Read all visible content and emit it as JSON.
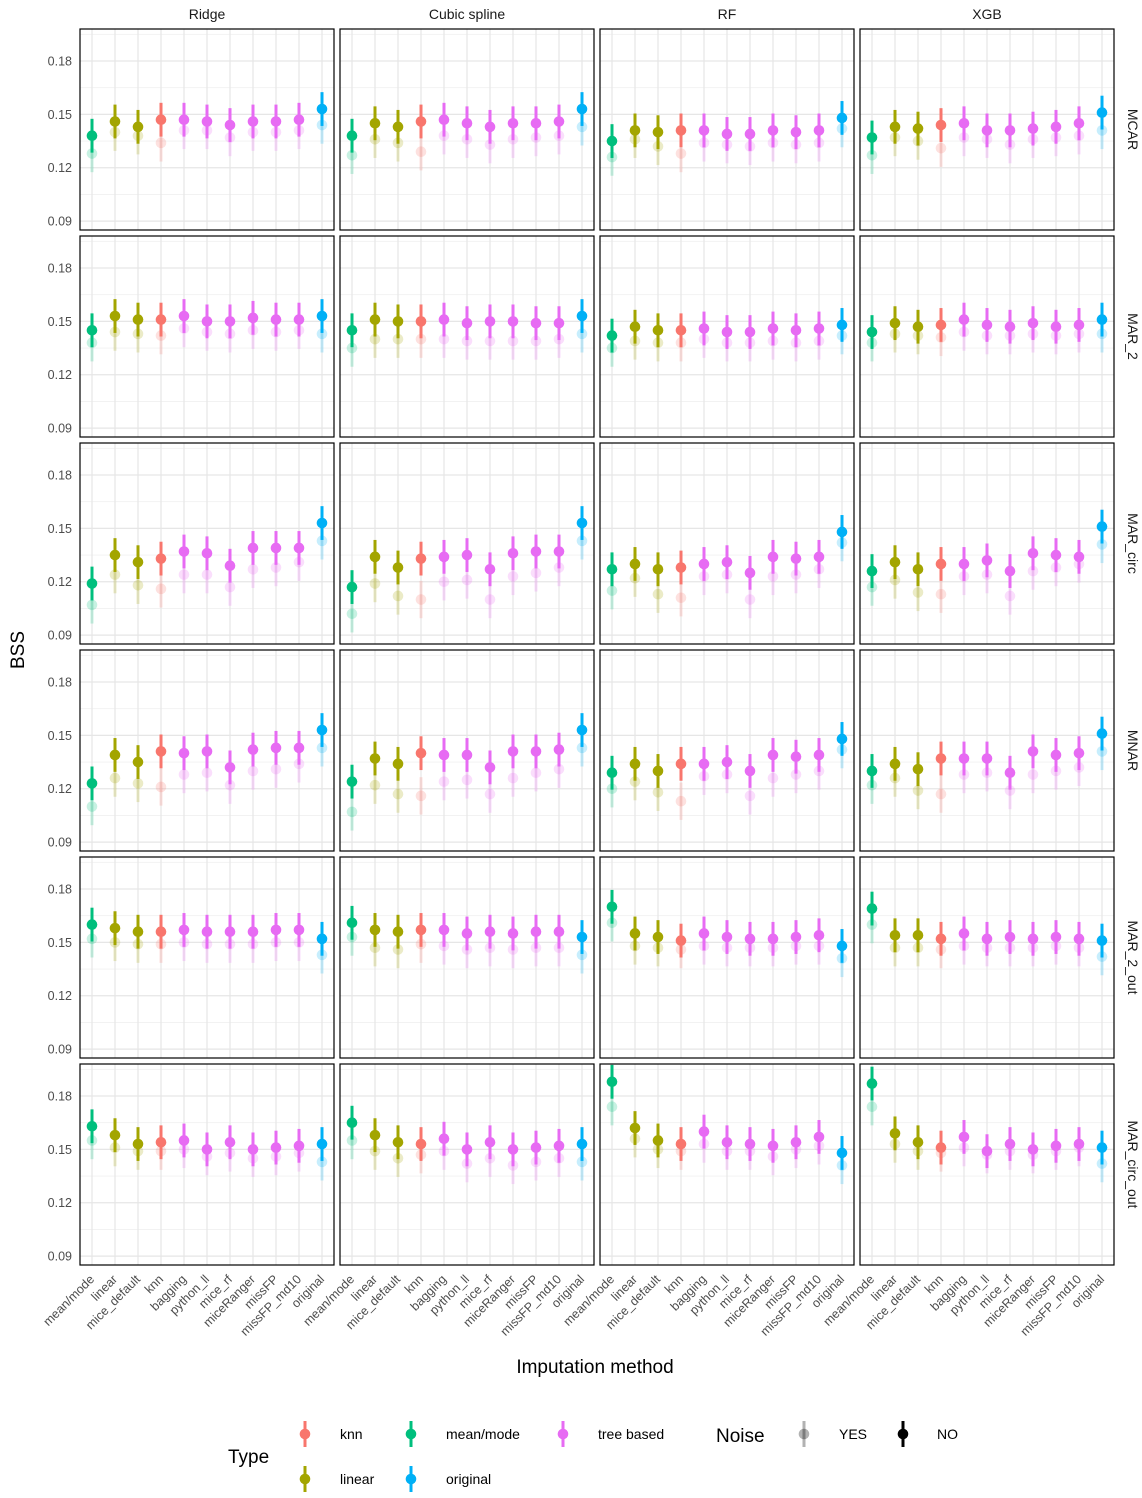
{
  "chart_data": {
    "type": "scatter",
    "ylabel": "BSS",
    "xlabel": "Imputation method",
    "ylim": [
      0.085,
      0.198
    ],
    "yticks": [
      0.09,
      0.12,
      0.15,
      0.18
    ],
    "grid": true,
    "legend_position": "bottom",
    "models": [
      "Ridge",
      "Cubic spline",
      "RF",
      "XGB"
    ],
    "mechanisms": [
      "MCAR",
      "MAR_2",
      "MAR_circ",
      "MNAR",
      "MAR_2_out",
      "MAR_circ_out"
    ],
    "methods": [
      "mean/mode",
      "linear",
      "mice_default",
      "knn",
      "bagging",
      "python_ll",
      "mice_rf",
      "miceRanger",
      "missFP",
      "missFP_md10",
      "original"
    ],
    "method_types": [
      "mean/mode",
      "linear",
      "linear",
      "knn",
      "tree based",
      "tree based",
      "tree based",
      "tree based",
      "tree based",
      "tree based",
      "original"
    ],
    "type_colors": {
      "knn": "#F8766D",
      "linear": "#A3A500",
      "mean/mode": "#00BF7D",
      "original": "#00B0F6",
      "tree based": "#E76BF3"
    },
    "legend": {
      "type_title": "Type",
      "type_entries": [
        "knn",
        "linear",
        "mean/mode",
        "original",
        "tree based"
      ],
      "noise_title": "Noise",
      "noise_entries": [
        "YES",
        "NO"
      ]
    },
    "series": [
      {
        "name": "NO",
        "values": {
          "MCAR": {
            "Ridge": [
              0.138,
              0.146,
              0.143,
              0.147,
              0.147,
              0.146,
              0.144,
              0.146,
              0.146,
              0.147,
              0.153
            ],
            "Cubic spline": [
              0.138,
              0.145,
              0.143,
              0.146,
              0.147,
              0.145,
              0.143,
              0.145,
              0.145,
              0.146,
              0.153
            ],
            "RF": [
              0.135,
              0.141,
              0.14,
              0.141,
              0.141,
              0.139,
              0.139,
              0.141,
              0.14,
              0.141,
              0.148
            ],
            "XGB": [
              0.137,
              0.143,
              0.142,
              0.144,
              0.145,
              0.141,
              0.141,
              0.142,
              0.143,
              0.145,
              0.151
            ]
          },
          "MAR_2": {
            "Ridge": [
              0.145,
              0.153,
              0.151,
              0.151,
              0.153,
              0.15,
              0.15,
              0.152,
              0.151,
              0.151,
              0.153
            ],
            "Cubic spline": [
              0.145,
              0.151,
              0.15,
              0.15,
              0.151,
              0.149,
              0.15,
              0.15,
              0.149,
              0.149,
              0.153
            ],
            "RF": [
              0.142,
              0.147,
              0.145,
              0.145,
              0.146,
              0.144,
              0.144,
              0.146,
              0.145,
              0.146,
              0.148
            ],
            "XGB": [
              0.144,
              0.149,
              0.147,
              0.148,
              0.151,
              0.148,
              0.147,
              0.149,
              0.147,
              0.148,
              0.151
            ]
          },
          "MAR_circ": {
            "Ridge": [
              0.119,
              0.135,
              0.131,
              0.133,
              0.137,
              0.136,
              0.129,
              0.139,
              0.139,
              0.139,
              0.153
            ],
            "Cubic spline": [
              0.117,
              0.134,
              0.128,
              0.133,
              0.134,
              0.135,
              0.127,
              0.136,
              0.137,
              0.137,
              0.153
            ],
            "RF": [
              0.127,
              0.13,
              0.127,
              0.128,
              0.13,
              0.131,
              0.125,
              0.134,
              0.133,
              0.134,
              0.148
            ],
            "XGB": [
              0.126,
              0.131,
              0.127,
              0.13,
              0.13,
              0.132,
              0.126,
              0.136,
              0.135,
              0.134,
              0.151
            ]
          },
          "MNAR": {
            "Ridge": [
              0.123,
              0.139,
              0.135,
              0.141,
              0.14,
              0.141,
              0.132,
              0.142,
              0.143,
              0.143,
              0.153
            ],
            "Cubic spline": [
              0.124,
              0.137,
              0.134,
              0.14,
              0.139,
              0.139,
              0.132,
              0.141,
              0.141,
              0.142,
              0.153
            ],
            "RF": [
              0.129,
              0.134,
              0.13,
              0.134,
              0.134,
              0.135,
              0.13,
              0.139,
              0.138,
              0.139,
              0.148
            ],
            "XGB": [
              0.13,
              0.134,
              0.131,
              0.137,
              0.137,
              0.137,
              0.129,
              0.141,
              0.139,
              0.14,
              0.151
            ]
          },
          "MAR_2_out": {
            "Ridge": [
              0.16,
              0.158,
              0.156,
              0.156,
              0.157,
              0.156,
              0.156,
              0.156,
              0.157,
              0.157,
              0.152
            ],
            "Cubic spline": [
              0.161,
              0.157,
              0.156,
              0.157,
              0.157,
              0.155,
              0.156,
              0.155,
              0.156,
              0.156,
              0.153
            ],
            "RF": [
              0.17,
              0.155,
              0.153,
              0.151,
              0.155,
              0.153,
              0.152,
              0.152,
              0.153,
              0.154,
              0.148
            ],
            "XGB": [
              0.169,
              0.154,
              0.154,
              0.152,
              0.155,
              0.152,
              0.153,
              0.152,
              0.153,
              0.152,
              0.151
            ]
          },
          "MAR_circ_out": {
            "Ridge": [
              0.163,
              0.158,
              0.153,
              0.154,
              0.155,
              0.15,
              0.154,
              0.15,
              0.151,
              0.152,
              0.153
            ],
            "Cubic spline": [
              0.165,
              0.158,
              0.154,
              0.153,
              0.156,
              0.15,
              0.154,
              0.15,
              0.151,
              0.152,
              0.153
            ],
            "RF": [
              0.188,
              0.162,
              0.155,
              0.153,
              0.16,
              0.154,
              0.153,
              0.152,
              0.154,
              0.157,
              0.148
            ],
            "XGB": [
              0.187,
              0.159,
              0.154,
              0.151,
              0.157,
              0.149,
              0.153,
              0.15,
              0.152,
              0.153,
              0.151
            ]
          }
        }
      },
      {
        "name": "YES",
        "values": {
          "MCAR": {
            "Ridge": [
              0.128,
              0.14,
              0.138,
              0.134,
              0.141,
              0.141,
              0.137,
              0.14,
              0.14,
              0.141,
              0.144
            ],
            "Cubic spline": [
              0.127,
              0.136,
              0.134,
              0.129,
              0.138,
              0.136,
              0.133,
              0.136,
              0.137,
              0.138,
              0.143
            ],
            "RF": [
              0.126,
              0.136,
              0.132,
              0.128,
              0.134,
              0.133,
              0.132,
              0.134,
              0.133,
              0.134,
              0.142
            ],
            "XGB": [
              0.127,
              0.137,
              0.135,
              0.131,
              0.137,
              0.136,
              0.133,
              0.136,
              0.137,
              0.138,
              0.141
            ]
          },
          "MAR_2": {
            "Ridge": [
              0.138,
              0.144,
              0.143,
              0.142,
              0.146,
              0.144,
              0.143,
              0.145,
              0.144,
              0.145,
              0.143
            ],
            "Cubic spline": [
              0.135,
              0.14,
              0.14,
              0.14,
              0.14,
              0.139,
              0.139,
              0.139,
              0.139,
              0.14,
              0.143
            ],
            "RF": [
              0.135,
              0.139,
              0.138,
              0.138,
              0.14,
              0.138,
              0.138,
              0.139,
              0.138,
              0.139,
              0.142
            ],
            "XGB": [
              0.138,
              0.143,
              0.142,
              0.141,
              0.144,
              0.142,
              0.142,
              0.143,
              0.142,
              0.143,
              0.143
            ]
          },
          "MAR_circ": {
            "Ridge": [
              0.107,
              0.124,
              0.118,
              0.116,
              0.124,
              0.124,
              0.117,
              0.127,
              0.128,
              0.131,
              0.143
            ],
            "Cubic spline": [
              0.102,
              0.119,
              0.112,
              0.11,
              0.12,
              0.121,
              0.11,
              0.123,
              0.125,
              0.128,
              0.143
            ],
            "RF": [
              0.115,
              0.122,
              0.113,
              0.111,
              0.123,
              0.124,
              0.11,
              0.123,
              0.124,
              0.127,
              0.142
            ],
            "XGB": [
              0.117,
              0.121,
              0.114,
              0.113,
              0.123,
              0.124,
              0.112,
              0.126,
              0.128,
              0.13,
              0.141
            ]
          },
          "MNAR": {
            "Ridge": [
              0.11,
              0.126,
              0.123,
              0.121,
              0.128,
              0.129,
              0.122,
              0.13,
              0.131,
              0.134,
              0.143
            ],
            "Cubic spline": [
              0.107,
              0.122,
              0.117,
              0.116,
              0.124,
              0.125,
              0.117,
              0.126,
              0.129,
              0.131,
              0.143
            ],
            "RF": [
              0.12,
              0.124,
              0.118,
              0.113,
              0.127,
              0.128,
              0.116,
              0.126,
              0.128,
              0.13,
              0.142
            ],
            "XGB": [
              0.122,
              0.126,
              0.119,
              0.117,
              0.128,
              0.129,
              0.119,
              0.128,
              0.13,
              0.132,
              0.141
            ]
          },
          "MAR_2_out": {
            "Ridge": [
              0.152,
              0.15,
              0.149,
              0.149,
              0.15,
              0.149,
              0.149,
              0.149,
              0.15,
              0.15,
              0.143
            ],
            "Cubic spline": [
              0.153,
              0.147,
              0.146,
              0.149,
              0.148,
              0.146,
              0.147,
              0.146,
              0.147,
              0.147,
              0.143
            ],
            "RF": [
              0.161,
              0.148,
              0.147,
              0.146,
              0.148,
              0.147,
              0.147,
              0.147,
              0.148,
              0.148,
              0.141
            ],
            "XGB": [
              0.16,
              0.147,
              0.147,
              0.146,
              0.148,
              0.147,
              0.147,
              0.147,
              0.148,
              0.147,
              0.142
            ]
          },
          "MAR_circ_out": {
            "Ridge": [
              0.155,
              0.151,
              0.149,
              0.149,
              0.15,
              0.146,
              0.148,
              0.145,
              0.146,
              0.148,
              0.143
            ],
            "Cubic spline": [
              0.155,
              0.149,
              0.145,
              0.147,
              0.149,
              0.142,
              0.145,
              0.141,
              0.143,
              0.145,
              0.143
            ],
            "RF": [
              0.174,
              0.156,
              0.15,
              0.149,
              0.153,
              0.149,
              0.149,
              0.146,
              0.15,
              0.152,
              0.141
            ],
            "XGB": [
              0.174,
              0.153,
              0.149,
              0.148,
              0.151,
              0.147,
              0.149,
              0.147,
              0.149,
              0.151,
              0.142
            ]
          }
        }
      }
    ]
  }
}
